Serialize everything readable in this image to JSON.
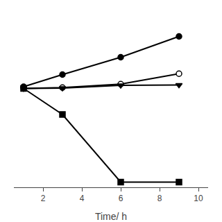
{
  "chart_data": {
    "type": "line",
    "xlabel": "Time/ h",
    "x": [
      1,
      3,
      6,
      9
    ],
    "series": [
      {
        "color": "black",
        "marker": "circle",
        "line_style": "solid",
        "values": [
          5.8,
          6.5,
          7.5,
          8.7
        ]
      },
      {
        "color": "black",
        "marker": "circle-open",
        "line_style": "solid",
        "values": [
          5.7,
          5.75,
          5.95,
          6.55
        ]
      },
      {
        "color": "black",
        "marker": "triangle-down",
        "line_style": "solid",
        "values": [
          5.7,
          5.72,
          5.88,
          5.9
        ]
      },
      {
        "color": "black",
        "marker": "square",
        "line_style": "solid",
        "values": [
          5.7,
          4.2,
          0.3,
          0.3
        ]
      }
    ],
    "xlim": [
      0.5,
      10.5
    ],
    "xticks": [
      2,
      4,
      6,
      8,
      10
    ],
    "ylim": [
      0,
      10
    ],
    "tick_labels": "x",
    "grid": false
  }
}
